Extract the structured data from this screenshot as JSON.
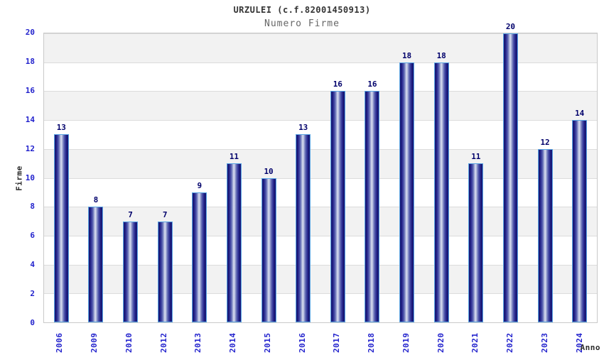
{
  "chart_data": {
    "type": "bar",
    "title": "URZULEI (c.f.82001450913)",
    "subtitle": "Numero Firme",
    "xlabel": "Anno",
    "ylabel": "Firme",
    "categories": [
      "2006",
      "2009",
      "2010",
      "2012",
      "2013",
      "2014",
      "2015",
      "2016",
      "2017",
      "2018",
      "2019",
      "2020",
      "2021",
      "2022",
      "2023",
      "2024"
    ],
    "values": [
      13,
      8,
      7,
      7,
      9,
      11,
      10,
      13,
      16,
      16,
      18,
      18,
      11,
      20,
      12,
      14
    ],
    "ylim": [
      0,
      20
    ],
    "ytick_step": 2,
    "yticks": [
      0,
      2,
      4,
      6,
      8,
      10,
      12,
      14,
      16,
      18,
      20
    ],
    "grid": "horizontal gridlines every 2 units with alternating white/gray bands",
    "legend": "none",
    "colors": {
      "background": "#ffffff",
      "title": "#333333",
      "subtitle": "#666666",
      "tick_labels": "#2323cd",
      "value_labels": "#00006b",
      "axis_titles": "#2b2b2b",
      "bar_border": "#59a4e2",
      "bar_dark": "#13136c",
      "bar_mid": "#2b2b93",
      "bar_highlight": "#dde1f0",
      "band_gray": "#f2f2f2",
      "band_white": "#ffffff",
      "gridline": "#dcdcdc",
      "plot_border": "#c9c9c9"
    }
  }
}
